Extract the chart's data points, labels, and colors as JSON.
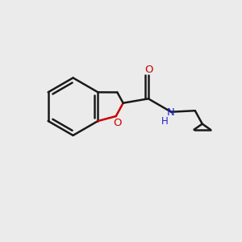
{
  "background_color": "#ebebeb",
  "bond_color": "#1a1a1a",
  "O_color": "#cc0000",
  "N_color": "#2222cc",
  "bond_width": 1.8,
  "figsize": [
    3.0,
    3.0
  ],
  "dpi": 100,
  "xlim": [
    0,
    10
  ],
  "ylim": [
    0,
    10
  ]
}
